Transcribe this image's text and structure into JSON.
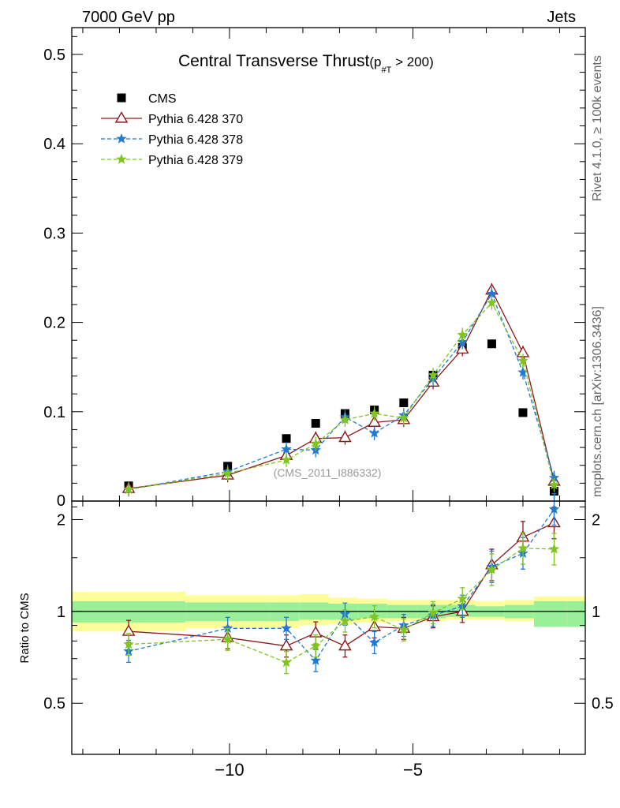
{
  "header": {
    "left": "7000 GeV pp",
    "right": "Jets"
  },
  "side": {
    "rivet": "Rivet 4.1.0, ≥ 100k events",
    "mcplots": "mcplots.cern.ch [arXiv:1306.3436]"
  },
  "chart_data": {
    "type": "scatter",
    "title_main": "Central Transverse Thrust",
    "title_sub": "(p",
    "title_sub_index": "#T",
    "title_sub_tail": " > 200)",
    "watermark": "(CMS_2011_I886332)",
    "ratio_ylabel": "Ratio to CMS",
    "xlim": [
      -14.3,
      -0.3
    ],
    "x_ticks": [
      -10,
      -5
    ],
    "x_tick_labels": [
      "−10",
      "−5"
    ],
    "main_ylim": [
      0,
      0.53
    ],
    "main_y_ticks": [
      0.1,
      0.2,
      0.3,
      0.4,
      0.5
    ],
    "main_y_tick_labels": [
      "0.1",
      "0.2",
      "0.3",
      "0.4",
      "0.5"
    ],
    "main_y_zero_label": "0",
    "ratio_ylim": [
      0.34,
      2.3
    ],
    "ratio_y_ticks": [
      0.5,
      1,
      2
    ],
    "ratio_y_tick_labels": [
      "0.5",
      "1",
      "2"
    ],
    "x": [
      -12.75,
      -10.05,
      -8.45,
      -7.65,
      -6.85,
      -6.05,
      -5.25,
      -4.45,
      -3.65,
      -2.85,
      -2.0,
      -1.15
    ],
    "legend": {
      "position": "top-left",
      "entries": [
        "CMS",
        "Pythia 6.428 370",
        "Pythia 6.428 378",
        "Pythia 6.428 379"
      ]
    },
    "series": [
      {
        "name": "CMS",
        "color": "#000000",
        "values": [
          0.017,
          0.039,
          0.07,
          0.087,
          0.098,
          0.102,
          0.11,
          0.141,
          0.172,
          0.176,
          0.099,
          0.011
        ]
      },
      {
        "name": "Pythia 6.428 370",
        "color": "#8b1a1a",
        "values": [
          0.014,
          0.029,
          0.051,
          0.07,
          0.071,
          0.088,
          0.091,
          0.133,
          0.17,
          0.236,
          0.166,
          0.022
        ],
        "ratio": [
          0.86,
          0.82,
          0.77,
          0.85,
          0.77,
          0.89,
          0.88,
          0.96,
          1.0,
          1.42,
          1.75,
          1.95
        ]
      },
      {
        "name": "Pythia 6.428 378",
        "color": "#1f7ad6",
        "values": [
          0.013,
          0.033,
          0.058,
          0.057,
          0.094,
          0.076,
          0.096,
          0.137,
          0.178,
          0.232,
          0.144,
          0.026
        ],
        "ratio": [
          0.74,
          0.88,
          0.88,
          0.69,
          0.98,
          0.79,
          0.9,
          0.97,
          1.04,
          1.4,
          1.55,
          2.16
        ]
      },
      {
        "name": "Pythia 6.428 379",
        "color": "#7fc41f",
        "values": [
          0.013,
          0.031,
          0.046,
          0.064,
          0.091,
          0.098,
          0.093,
          0.141,
          0.186,
          0.222,
          0.157,
          0.018
        ],
        "ratio": [
          0.78,
          0.81,
          0.68,
          0.77,
          0.93,
          0.96,
          0.87,
          0.99,
          1.1,
          1.37,
          1.61,
          1.6
        ]
      }
    ],
    "uncertainty_bins": {
      "edges": [
        -14.3,
        -11.2,
        -8.9,
        -8.1,
        -7.3,
        -6.5,
        -5.7,
        -4.9,
        -4.1,
        -3.3,
        -2.5,
        -1.7,
        -0.8,
        -0.3
      ],
      "inner": [
        0.92,
        0.93,
        0.93,
        0.94,
        0.94,
        0.95,
        0.95,
        0.95,
        0.96,
        0.96,
        0.95,
        0.89,
        0.89
      ],
      "inner_hi": [
        1.08,
        1.07,
        1.07,
        1.07,
        1.06,
        1.06,
        1.05,
        1.05,
        1.05,
        1.04,
        1.05,
        1.08,
        1.08
      ],
      "outer": [
        0.86,
        0.88,
        0.88,
        0.9,
        0.91,
        0.92,
        0.93,
        0.93,
        0.94,
        0.94,
        0.93,
        0.89,
        0.89
      ],
      "outer_hi": [
        1.16,
        1.13,
        1.13,
        1.14,
        1.11,
        1.1,
        1.09,
        1.09,
        1.09,
        1.08,
        1.09,
        1.12,
        1.12
      ]
    },
    "colors": {
      "band_inner": "#99f099",
      "band_outer": "#fdfd99"
    }
  }
}
